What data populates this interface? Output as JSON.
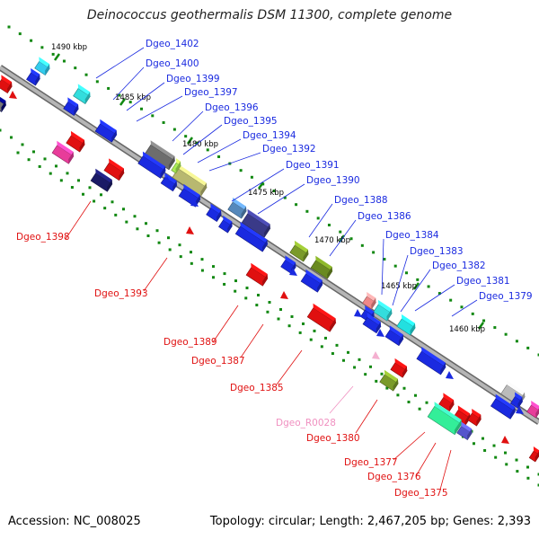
{
  "title": "Deinococcus geothermalis DSM 11300, complete genome",
  "footer": {
    "accession": "Accession: NC_008025",
    "summary": "Topology: circular; Length: 2,467,205 bp; Genes: 2,393"
  },
  "colors": {
    "forward": "#1a2ae0",
    "reverse": "#e01010",
    "rna": "#f090c0",
    "tick": "#118811",
    "backbone": "#888888"
  },
  "kbp_markers": [
    "1490 kbp",
    "1485 kbp",
    "1480 kbp",
    "1475 kbp",
    "1470 kbp",
    "1465 kbp",
    "1460 kbp"
  ],
  "forward_labels": [
    "Dgeo_1402",
    "Dgeo_1400",
    "Dgeo_1399",
    "Dgeo_1397",
    "Dgeo_1396",
    "Dgeo_1395",
    "Dgeo_1394",
    "Dgeo_1392",
    "Dgeo_1391",
    "Dgeo_1390",
    "Dgeo_1388",
    "Dgeo_1386",
    "Dgeo_1384",
    "Dgeo_1383",
    "Dgeo_1382",
    "Dgeo_1381",
    "Dgeo_1379"
  ],
  "reverse_labels": [
    "Dgeo_1398",
    "Dgeo_1393",
    "Dgeo_1389",
    "Dgeo_1387",
    "Dgeo_1385",
    "Dgeo_R0028",
    "Dgeo_1380",
    "Dgeo_1377",
    "Dgeo_1376",
    "Dgeo_1375"
  ]
}
